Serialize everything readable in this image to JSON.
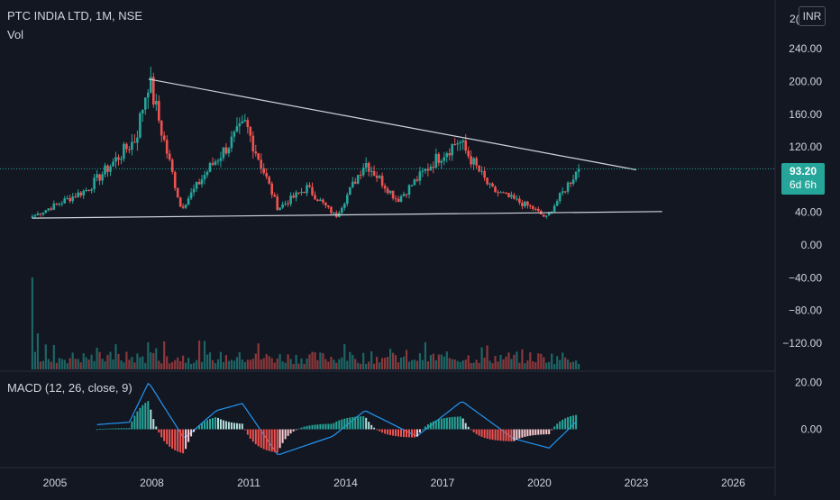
{
  "legend": {
    "symbol_line": "PTC INDIA LTD, 1M, NSE",
    "volume_label": "Vol",
    "macd_label": "MACD (12, 26, close, 9)"
  },
  "currency": "INR",
  "last_price": {
    "value_text": "93.20",
    "countdown": "6d 6h",
    "value": 93.2
  },
  "colors": {
    "background": "#131722",
    "up": "#26a69a",
    "down": "#ef5350",
    "macd_line": "#2196f3",
    "axis_text": "#d1d4dc",
    "trendline": "#d1d4dc"
  },
  "chart_data": {
    "type": "candlestick",
    "interval": "1M",
    "exchange": "NSE",
    "x_tick_labels": [
      "2005",
      "2008",
      "2011",
      "2014",
      "2017",
      "2020",
      "2023",
      "2026"
    ],
    "price_axis_labels": [
      "240.00",
      "200.00",
      "160.00",
      "120.00",
      "40.00",
      "0.00",
      "−40.00",
      "−80.00",
      "−120.00"
    ],
    "price_axis_cut_label": "2(",
    "price_range": [
      -155,
      275
    ],
    "macd_axis_labels": [
      "20.00",
      "0.00"
    ],
    "macd_range": [
      -13,
      22
    ],
    "key_points": [
      {
        "date": "2004.3",
        "price": 35
      },
      {
        "date": "2006.0",
        "price": 68
      },
      {
        "date": "2007.5",
        "price": 130
      },
      {
        "date": "2007.9",
        "price": 203
      },
      {
        "date": "2008.9",
        "price": 45
      },
      {
        "date": "2009.8",
        "price": 95
      },
      {
        "date": "2010.9",
        "price": 148
      },
      {
        "date": "2011.9",
        "price": 45
      },
      {
        "date": "2012.8",
        "price": 70
      },
      {
        "date": "2013.7",
        "price": 35
      },
      {
        "date": "2014.6",
        "price": 102
      },
      {
        "date": "2015.6",
        "price": 55
      },
      {
        "date": "2016.8",
        "price": 105
      },
      {
        "date": "2017.5",
        "price": 128
      },
      {
        "date": "2018.5",
        "price": 68
      },
      {
        "date": "2019.8",
        "price": 45
      },
      {
        "date": "2020.2",
        "price": 33
      },
      {
        "date": "2021.2",
        "price": 93.2
      }
    ],
    "macd_key_points": [
      {
        "date": "2006.3",
        "macd": 2
      },
      {
        "date": "2007.3",
        "macd": 3
      },
      {
        "date": "2007.9",
        "macd": 20
      },
      {
        "date": "2009.0",
        "macd": -4
      },
      {
        "date": "2010.0",
        "macd": 8
      },
      {
        "date": "2010.8",
        "macd": 11
      },
      {
        "date": "2011.9",
        "macd": -11
      },
      {
        "date": "2013.6",
        "macd": -3
      },
      {
        "date": "2014.6",
        "macd": 8
      },
      {
        "date": "2016.2",
        "macd": -3
      },
      {
        "date": "2017.6",
        "macd": 12
      },
      {
        "date": "2019.2",
        "macd": -4
      },
      {
        "date": "2020.3",
        "macd": -8
      },
      {
        "date": "2021.2",
        "macd": 4
      }
    ],
    "trendlines": [
      {
        "name": "descending resistance",
        "from": {
          "date": "2007.9",
          "price": 203
        },
        "to": {
          "date": "2023.0",
          "price": 92
        }
      },
      {
        "name": "horizontal support",
        "from": {
          "date": "2004.3",
          "price": 33
        },
        "to": {
          "date": "2023.8",
          "price": 41
        }
      }
    ],
    "volume_peak_date": "2004.3",
    "grid": false,
    "legend_position": "top-left"
  }
}
